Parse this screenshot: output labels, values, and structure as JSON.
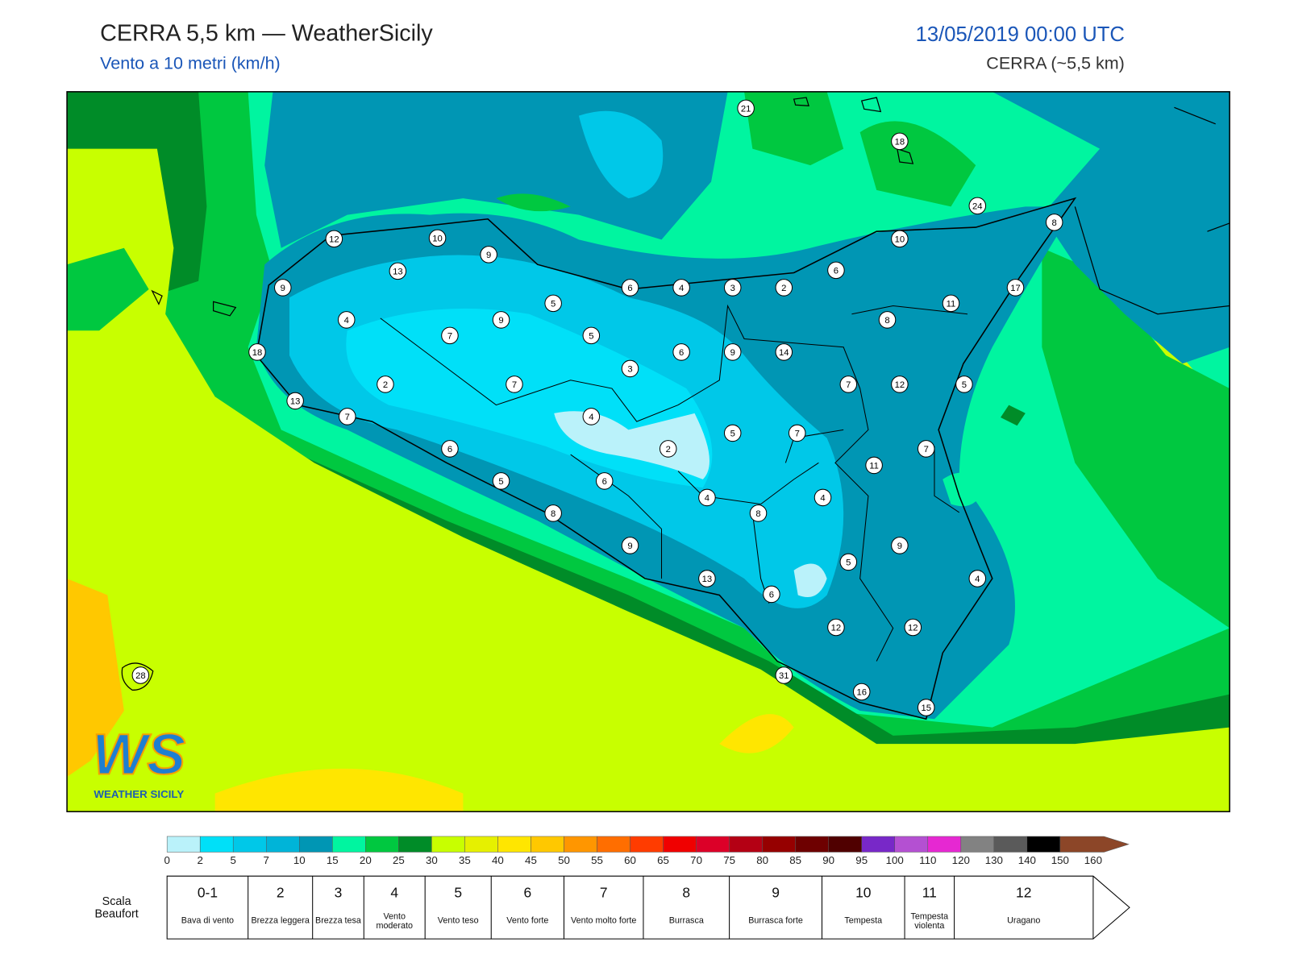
{
  "header": {
    "title": "CERRA 5,5 km — WeatherSicily",
    "subtitle": "Vento a 10 metri (km/h)",
    "datetime": "13/05/2019 00:00 UTC",
    "model": "CERRA (~5,5 km)"
  },
  "logo": {
    "mark": "WS",
    "name": "WEATHER SICILY"
  },
  "map": {
    "stations": [
      21,
      18,
      24,
      8,
      12,
      10,
      9,
      13,
      10,
      6,
      9,
      6,
      4,
      3,
      2,
      17,
      11,
      4,
      9,
      5,
      8,
      7,
      5,
      18,
      6,
      9,
      14,
      3,
      2,
      7,
      7,
      12,
      5,
      13,
      4,
      7,
      5,
      7,
      6,
      2,
      7,
      11,
      5,
      6,
      4,
      4,
      8,
      8,
      9,
      9,
      5,
      4,
      13,
      6,
      12,
      12,
      28,
      31,
      16,
      15
    ]
  },
  "colorbar": {
    "ticks": [
      0,
      2,
      5,
      7,
      10,
      15,
      20,
      25,
      30,
      35,
      40,
      45,
      50,
      55,
      60,
      65,
      70,
      75,
      80,
      85,
      90,
      95,
      100,
      110,
      120,
      130,
      140,
      150,
      160
    ],
    "colors": [
      "#baf2fa",
      "#00e0f8",
      "#00c8e8",
      "#00b4d8",
      "#0096b4",
      "#00f5a0",
      "#00c840",
      "#008c28",
      "#c8ff00",
      "#e6f000",
      "#ffe600",
      "#ffc800",
      "#ff9600",
      "#ff6e00",
      "#ff3c00",
      "#f00000",
      "#dc0028",
      "#b40014",
      "#960000",
      "#6e0000",
      "#500000",
      "#7828c8",
      "#b450d2",
      "#e628d2",
      "#828282",
      "#5a5a5a",
      "#000000",
      "#8c4628",
      "#c88250"
    ]
  },
  "beaufort": {
    "label": "Scala Beaufort",
    "classes": [
      {
        "force": "0-1",
        "description": "Bava di vento"
      },
      {
        "force": "2",
        "description": "Brezza leggera"
      },
      {
        "force": "3",
        "description": "Brezza tesa"
      },
      {
        "force": "4",
        "description": "Vento moderato"
      },
      {
        "force": "5",
        "description": "Vento teso"
      },
      {
        "force": "6",
        "description": "Vento forte"
      },
      {
        "force": "7",
        "description": "Vento molto forte"
      },
      {
        "force": "8",
        "description": "Burrasca"
      },
      {
        "force": "9",
        "description": "Burrasca forte"
      },
      {
        "force": "10",
        "description": "Tempesta"
      },
      {
        "force": "11",
        "description": "Tempesta violenta"
      },
      {
        "force": "12",
        "description": "Uragano"
      }
    ]
  }
}
